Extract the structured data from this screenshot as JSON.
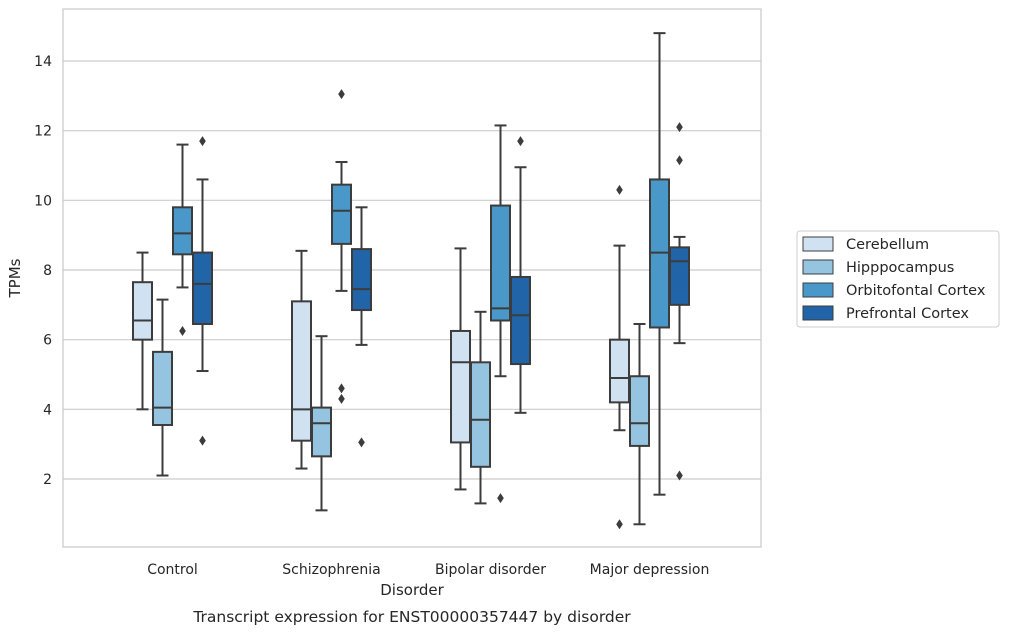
{
  "chart_data": {
    "type": "box",
    "caption": "Transcript expression for ENST00000357447 by disorder",
    "xlabel": "Disorder",
    "ylabel": "TPMs",
    "ylim": [
      0,
      15.5
    ],
    "yticks": [
      2,
      4,
      6,
      8,
      10,
      12,
      14
    ],
    "grid": true,
    "legend_position": "right",
    "categories": [
      "Control",
      "Schizophrenia",
      "Bipolar disorder",
      "Major depression"
    ],
    "series": [
      {
        "name": "Cerebellum",
        "color": "#d0e1f2",
        "boxes": [
          {
            "whislo": 4.0,
            "q1": 6.0,
            "med": 6.55,
            "q3": 7.65,
            "whishi": 8.5,
            "fliers": []
          },
          {
            "whislo": 2.3,
            "q1": 3.1,
            "med": 4.0,
            "q3": 7.1,
            "whishi": 8.55,
            "fliers": []
          },
          {
            "whislo": 1.7,
            "q1": 3.05,
            "med": 5.35,
            "q3": 6.25,
            "whishi": 8.62,
            "fliers": []
          },
          {
            "whislo": 3.4,
            "q1": 4.2,
            "med": 4.9,
            "q3": 6.0,
            "whishi": 8.7,
            "fliers": [
              10.3,
              0.7
            ]
          }
        ]
      },
      {
        "name": "Hipppocampus",
        "color": "#94c4df",
        "boxes": [
          {
            "whislo": 2.1,
            "q1": 3.55,
            "med": 4.05,
            "q3": 5.65,
            "whishi": 7.15,
            "fliers": []
          },
          {
            "whislo": 1.1,
            "q1": 2.65,
            "med": 3.6,
            "q3": 4.05,
            "whishi": 6.1,
            "fliers": []
          },
          {
            "whislo": 1.3,
            "q1": 2.35,
            "med": 3.7,
            "q3": 5.35,
            "whishi": 6.8,
            "fliers": []
          },
          {
            "whislo": 0.7,
            "q1": 2.95,
            "med": 3.6,
            "q3": 4.95,
            "whishi": 6.45,
            "fliers": []
          }
        ]
      },
      {
        "name": "Orbitofontal Cortex",
        "color": "#4a98c9",
        "boxes": [
          {
            "whislo": 7.5,
            "q1": 8.45,
            "med": 9.05,
            "q3": 9.8,
            "whishi": 11.6,
            "fliers": [
              6.25
            ]
          },
          {
            "whislo": 7.4,
            "q1": 8.75,
            "med": 9.7,
            "q3": 10.45,
            "whishi": 11.1,
            "fliers": [
              13.05,
              4.6,
              4.3
            ]
          },
          {
            "whislo": 4.95,
            "q1": 6.55,
            "med": 6.9,
            "q3": 9.85,
            "whishi": 12.15,
            "fliers": [
              1.45
            ]
          },
          {
            "whislo": 1.55,
            "q1": 6.35,
            "med": 8.5,
            "q3": 10.6,
            "whishi": 14.8,
            "fliers": []
          }
        ]
      },
      {
        "name": "Prefrontal Cortex",
        "color": "#2264a8",
        "boxes": [
          {
            "whislo": 5.1,
            "q1": 6.45,
            "med": 7.6,
            "q3": 8.5,
            "whishi": 10.6,
            "fliers": [
              11.7,
              3.1
            ]
          },
          {
            "whislo": 5.85,
            "q1": 6.85,
            "med": 7.45,
            "q3": 8.6,
            "whishi": 9.8,
            "fliers": [
              3.05
            ]
          },
          {
            "whislo": 3.9,
            "q1": 5.3,
            "med": 6.7,
            "q3": 7.8,
            "whishi": 10.95,
            "fliers": [
              11.7
            ]
          },
          {
            "whislo": 5.9,
            "q1": 7.0,
            "med": 8.25,
            "q3": 8.65,
            "whishi": 8.95,
            "fliers": [
              12.1,
              11.15,
              2.1
            ]
          }
        ]
      }
    ]
  }
}
